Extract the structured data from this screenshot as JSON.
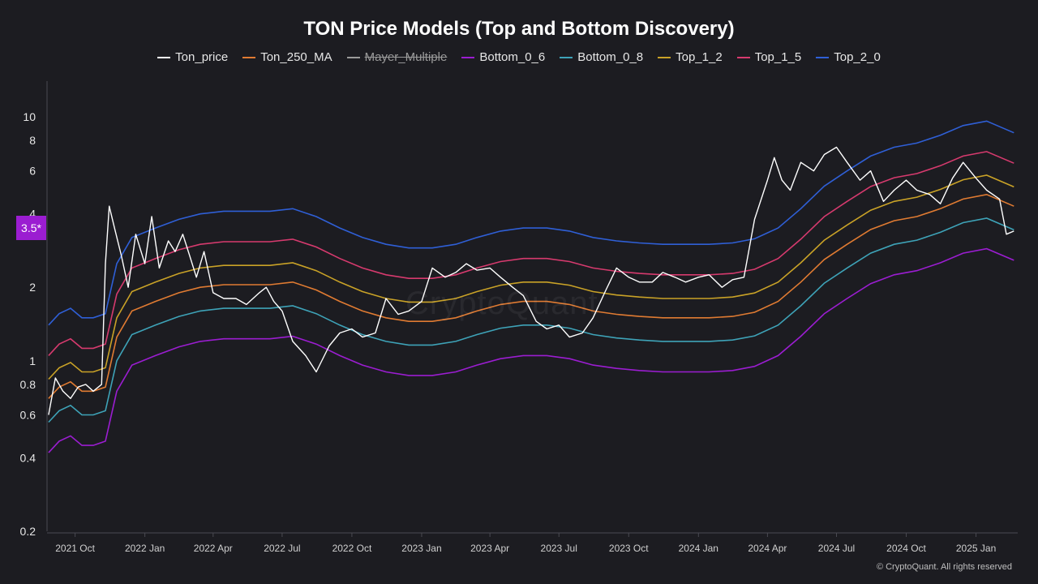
{
  "title": "TON Price Models (Top and Bottom Discovery)",
  "legend": [
    {
      "name": "Ton_price",
      "color": "#ffffff",
      "enabled": true
    },
    {
      "name": "Ton_250_MA",
      "color": "#e07b32",
      "enabled": true
    },
    {
      "name": "Mayer_Multiple",
      "color": "#9a9a9a",
      "enabled": false
    },
    {
      "name": "Bottom_0_6",
      "color": "#9b1dd1",
      "enabled": true
    },
    {
      "name": "Bottom_0_8",
      "color": "#3ea3b8",
      "enabled": true
    },
    {
      "name": "Top_1_2",
      "color": "#c9a227",
      "enabled": true
    },
    {
      "name": "Top_1_5",
      "color": "#d63a6e",
      "enabled": true
    },
    {
      "name": "Top_2_0",
      "color": "#2f5fd6",
      "enabled": true
    }
  ],
  "price_marker": "3.5*",
  "watermark": "CryptoQuant",
  "copyright": "© CryptoQuant. All rights reserved",
  "chart_data": {
    "type": "line",
    "y_scale": "log",
    "ylim": [
      0.2,
      14
    ],
    "y_ticks": [
      "0.2",
      "0.4",
      "0.6",
      "0.8",
      "1",
      "2",
      "4",
      "6",
      "8",
      "10"
    ],
    "x_ticks": [
      "2021 Oct",
      "2022 Jan",
      "2022 Apr",
      "2022 Jul",
      "2022 Oct",
      "2023 Jan",
      "2023 Apr",
      "2023 Jul",
      "2023 Oct",
      "2024 Jan",
      "2024 Apr",
      "2024 Jul",
      "2024 Oct",
      "2025 Jan"
    ],
    "x_range": [
      "2021-08-25",
      "2025-02-25"
    ],
    "x_tick_dates": [
      "2021-10-01",
      "2022-01-01",
      "2022-04-01",
      "2022-07-01",
      "2022-10-01",
      "2023-01-01",
      "2023-04-01",
      "2023-07-01",
      "2023-10-01",
      "2024-01-01",
      "2024-04-01",
      "2024-07-01",
      "2024-10-01",
      "2025-01-01"
    ],
    "series": [
      {
        "name": "Ton_price",
        "x": [
          "2021-08-27",
          "2021-09-05",
          "2021-09-15",
          "2021-09-25",
          "2021-10-05",
          "2021-10-15",
          "2021-10-25",
          "2021-11-05",
          "2021-11-10",
          "2021-11-15",
          "2021-11-22",
          "2021-12-01",
          "2021-12-10",
          "2021-12-20",
          "2022-01-01",
          "2022-01-10",
          "2022-01-20",
          "2022-02-01",
          "2022-02-10",
          "2022-02-20",
          "2022-03-01",
          "2022-03-10",
          "2022-03-20",
          "2022-04-01",
          "2022-04-15",
          "2022-05-01",
          "2022-05-15",
          "2022-06-01",
          "2022-06-10",
          "2022-06-20",
          "2022-07-01",
          "2022-07-15",
          "2022-08-01",
          "2022-08-15",
          "2022-09-01",
          "2022-09-15",
          "2022-10-01",
          "2022-10-15",
          "2022-11-01",
          "2022-11-15",
          "2022-12-01",
          "2022-12-15",
          "2023-01-01",
          "2023-01-15",
          "2023-02-01",
          "2023-02-15",
          "2023-03-01",
          "2023-03-15",
          "2023-04-01",
          "2023-04-15",
          "2023-05-01",
          "2023-05-15",
          "2023-06-01",
          "2023-06-15",
          "2023-07-01",
          "2023-07-15",
          "2023-08-01",
          "2023-08-15",
          "2023-09-01",
          "2023-09-15",
          "2023-10-01",
          "2023-10-15",
          "2023-11-01",
          "2023-11-15",
          "2023-12-01",
          "2023-12-15",
          "2024-01-01",
          "2024-01-15",
          "2024-02-01",
          "2024-02-15",
          "2024-03-01",
          "2024-03-15",
          "2024-04-01",
          "2024-04-10",
          "2024-04-20",
          "2024-05-01",
          "2024-05-15",
          "2024-06-01",
          "2024-06-15",
          "2024-07-01",
          "2024-07-15",
          "2024-08-01",
          "2024-08-15",
          "2024-09-01",
          "2024-09-15",
          "2024-10-01",
          "2024-10-15",
          "2024-11-01",
          "2024-11-15",
          "2024-12-01",
          "2024-12-15",
          "2025-01-01",
          "2025-01-15",
          "2025-02-01",
          "2025-02-10",
          "2025-02-20"
        ],
        "values": [
          0.6,
          0.85,
          0.75,
          0.7,
          0.78,
          0.8,
          0.75,
          0.8,
          2.5,
          4.3,
          3.5,
          2.7,
          2.0,
          3.3,
          2.5,
          3.9,
          2.4,
          3.1,
          2.8,
          3.3,
          2.7,
          2.2,
          2.8,
          1.9,
          1.8,
          1.8,
          1.7,
          1.9,
          2.0,
          1.75,
          1.6,
          1.2,
          1.05,
          0.9,
          1.15,
          1.3,
          1.35,
          1.25,
          1.3,
          1.8,
          1.55,
          1.6,
          1.75,
          2.4,
          2.2,
          2.3,
          2.5,
          2.35,
          2.4,
          2.2,
          2.0,
          1.85,
          1.45,
          1.35,
          1.4,
          1.25,
          1.3,
          1.5,
          1.95,
          2.4,
          2.2,
          2.1,
          2.1,
          2.3,
          2.2,
          2.1,
          2.2,
          2.25,
          2.0,
          2.15,
          2.2,
          3.8,
          5.5,
          6.8,
          5.5,
          5.0,
          6.5,
          6.0,
          7.0,
          7.5,
          6.5,
          5.5,
          6.0,
          4.5,
          5.0,
          5.5,
          5.0,
          4.8,
          4.4,
          5.6,
          6.5,
          5.6,
          5.0,
          4.6,
          3.3,
          3.4
        ]
      },
      {
        "name": "Ton_250_MA",
        "x": [
          "2021-08-27",
          "2021-09-10",
          "2021-09-25",
          "2021-10-10",
          "2021-10-25",
          "2021-11-10",
          "2021-11-25",
          "2021-12-15",
          "2022-01-15",
          "2022-02-15",
          "2022-03-15",
          "2022-04-15",
          "2022-05-15",
          "2022-06-15",
          "2022-07-15",
          "2022-08-15",
          "2022-09-15",
          "2022-10-15",
          "2022-11-15",
          "2022-12-15",
          "2023-01-15",
          "2023-02-15",
          "2023-03-15",
          "2023-04-15",
          "2023-05-15",
          "2023-06-15",
          "2023-07-15",
          "2023-08-15",
          "2023-09-15",
          "2023-10-15",
          "2023-11-15",
          "2023-12-15",
          "2024-01-15",
          "2024-02-15",
          "2024-03-15",
          "2024-04-15",
          "2024-05-15",
          "2024-06-15",
          "2024-07-15",
          "2024-08-15",
          "2024-09-15",
          "2024-10-15",
          "2024-11-15",
          "2024-12-15",
          "2025-01-15",
          "2025-02-20"
        ],
        "values": [
          0.7,
          0.78,
          0.82,
          0.75,
          0.75,
          0.78,
          1.25,
          1.6,
          1.75,
          1.9,
          2.0,
          2.05,
          2.05,
          2.05,
          2.1,
          1.95,
          1.75,
          1.6,
          1.5,
          1.45,
          1.45,
          1.5,
          1.6,
          1.7,
          1.75,
          1.75,
          1.7,
          1.6,
          1.55,
          1.52,
          1.5,
          1.5,
          1.5,
          1.52,
          1.58,
          1.75,
          2.1,
          2.6,
          3.0,
          3.45,
          3.75,
          3.9,
          4.2,
          4.6,
          4.8,
          4.3
        ]
      }
    ],
    "band_multipliers": {
      "Bottom_0_6": 0.6,
      "Bottom_0_8": 0.8,
      "Top_1_2": 1.2,
      "Top_1_5": 1.5,
      "Top_2_0": 2.0
    }
  }
}
